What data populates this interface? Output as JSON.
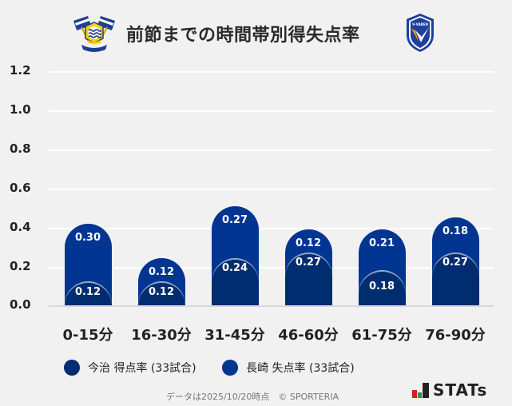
{
  "header": {
    "title": "前節までの時間帯別得失点率",
    "left_logo": "imabari-crest-icon",
    "right_logo": "v-varen-nagasaki-crest-icon",
    "right_logo_text": "V·VAREN"
  },
  "colors": {
    "imabari_scoring": "#002c70",
    "nagasaki_conceding": "#003592",
    "background": "#f1f1f1",
    "grid": "#ffffff"
  },
  "legend": {
    "items": [
      {
        "label": "今治 得点率 (33試合)",
        "color": "#002c70"
      },
      {
        "label": "長崎 失点率 (33試合)",
        "color": "#003592"
      }
    ]
  },
  "footer": {
    "note": "データは2025/10/20時点　© SPORTERIA",
    "brand": "STATs"
  },
  "chart_data": {
    "type": "bar",
    "stacked": true,
    "title": "前節までの時間帯別得失点率",
    "xlabel": "",
    "ylabel": "",
    "ylim": [
      0,
      1.2
    ],
    "yticks": [
      "0.0",
      "0.2",
      "0.4",
      "0.6",
      "0.8",
      "1.0",
      "1.2"
    ],
    "grid": true,
    "legend_position": "bottom",
    "categories": [
      "0-15分",
      "16-30分",
      "31-45分",
      "46-60分",
      "61-75分",
      "76-90分"
    ],
    "series": [
      {
        "name": "今治 得点率 (33試合)",
        "color": "#002c70",
        "position": "bottom",
        "values": [
          0.12,
          0.12,
          0.24,
          0.27,
          0.18,
          0.27
        ],
        "labels": [
          "0.12",
          "0.12",
          "0.24",
          "0.27",
          "0.18",
          "0.27"
        ]
      },
      {
        "name": "長崎 失点率 (33試合)",
        "color": "#003592",
        "position": "top",
        "values": [
          0.3,
          0.12,
          0.27,
          0.12,
          0.21,
          0.18
        ],
        "labels": [
          "0.30",
          "0.12",
          "0.27",
          "0.12",
          "0.21",
          "0.18"
        ]
      }
    ]
  }
}
